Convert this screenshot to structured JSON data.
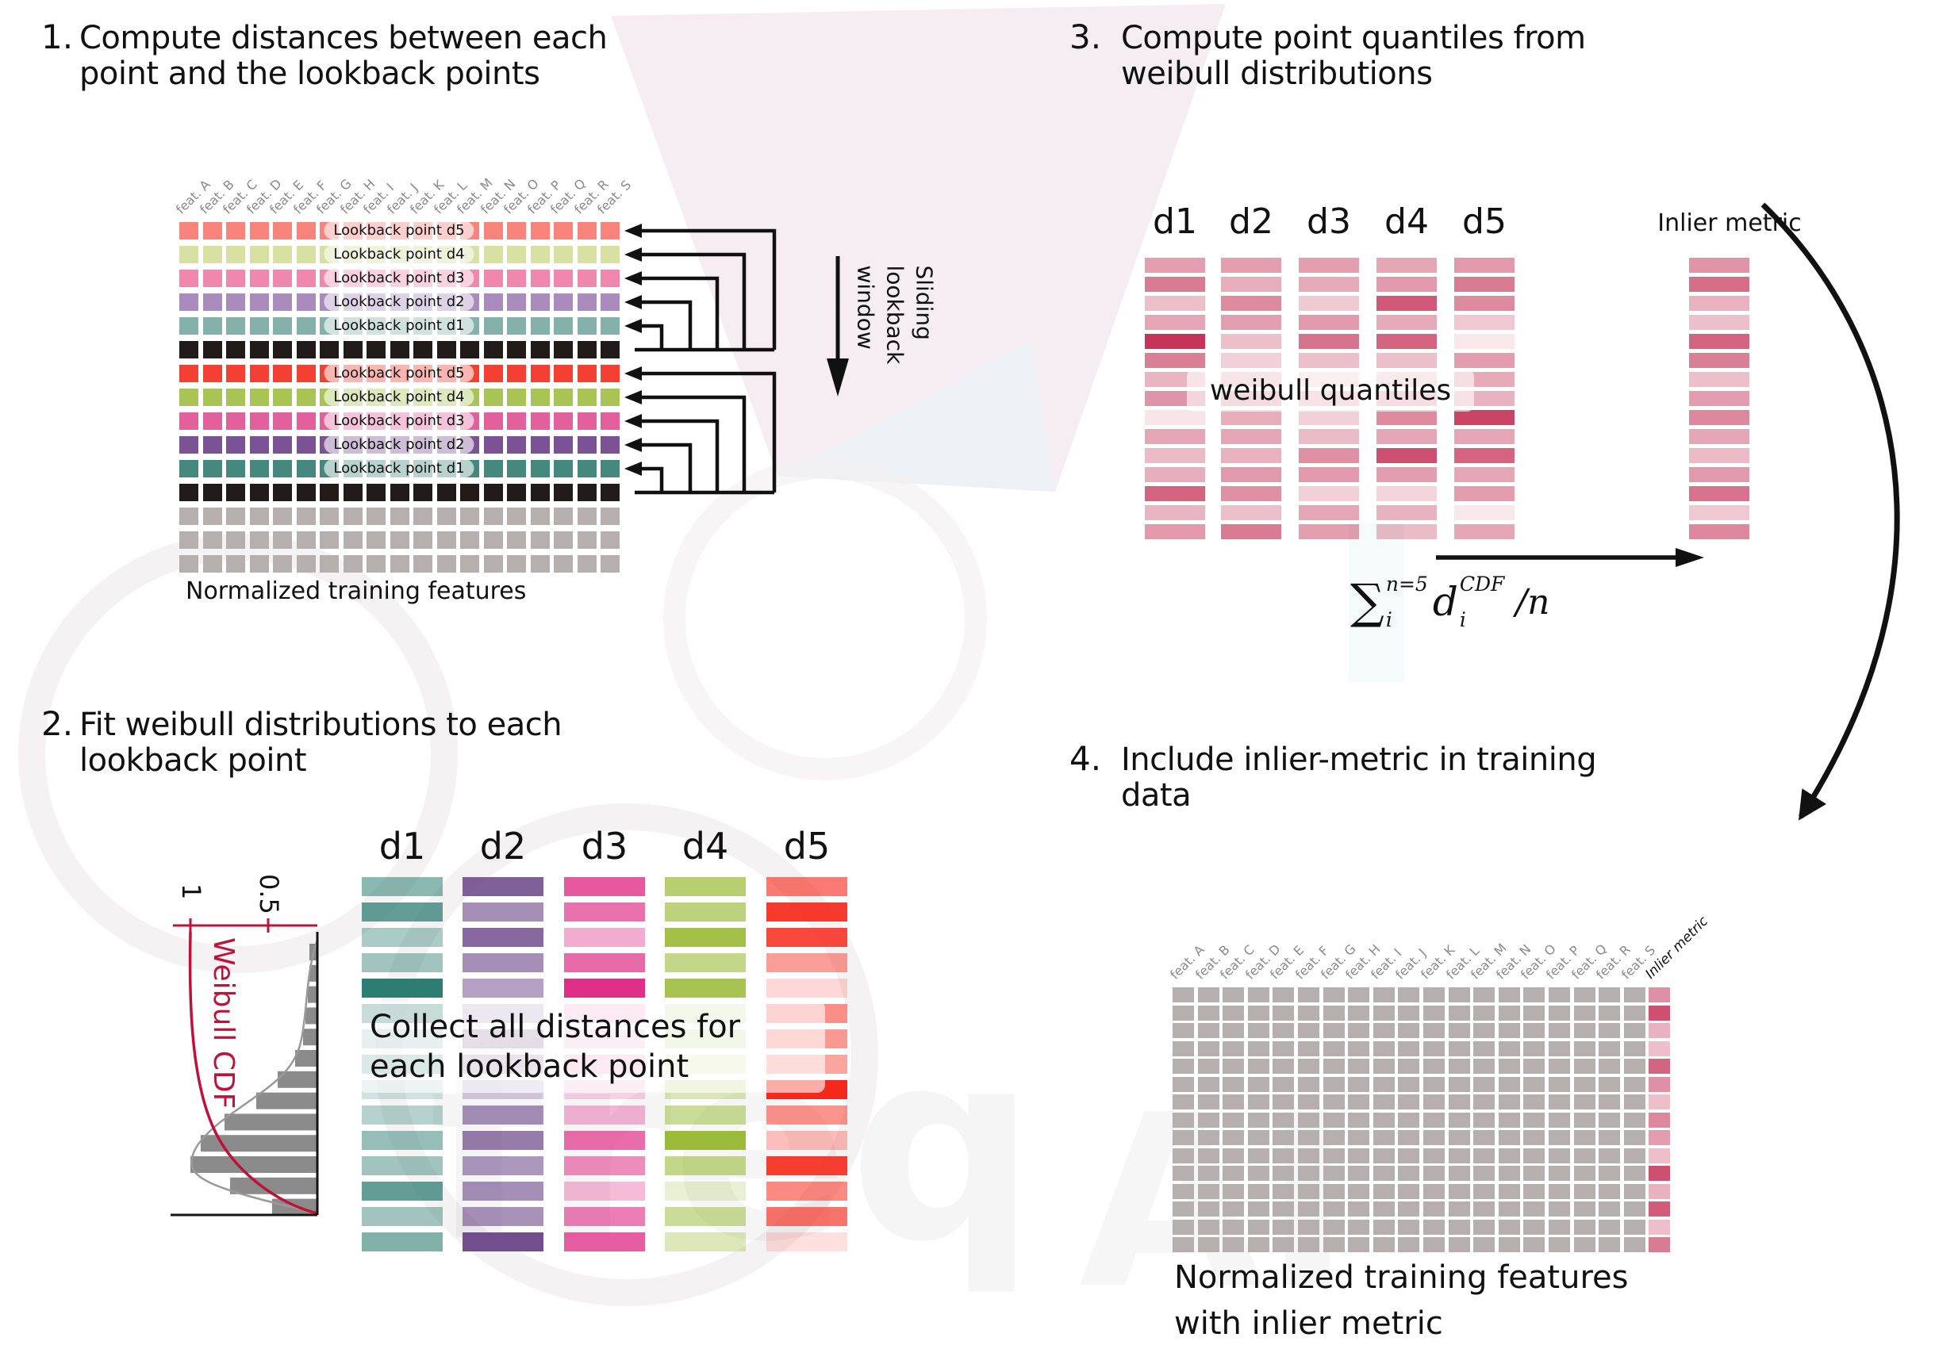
{
  "steps": {
    "s1": {
      "number": "1.",
      "title": "Compute distances between each\npoint and the lookback points",
      "caption": "Normalized training features",
      "sliding_label": "Sliding\nlookback\nwindow"
    },
    "s2": {
      "number": "2.",
      "title": "Fit weibull distributions to each\nlookback point",
      "overlay": "Collect all distances for\neach lookback point"
    },
    "s3": {
      "number": "3.",
      "title": "Compute point quantiles from\nweibull distributions",
      "overlay": "weibull quantiles",
      "inlier_header": "Inlier metric",
      "formula": {
        "sum": "∑",
        "sum_sup": "n=5",
        "sum_sub": "i",
        "var": "d",
        "var_sup": "CDF",
        "var_sub": "i",
        "tail": "/n"
      }
    },
    "s4": {
      "number": "4.",
      "title": "Include inlier-metric in training\ndata",
      "caption": "Normalized training features\nwith inlier metric",
      "inlier_label": "Inlier metric"
    }
  },
  "features": [
    "feat. A",
    "feat. B",
    "feat. C",
    "feat. D",
    "feat. E",
    "feat. F",
    "feat. G",
    "feat. H",
    "feat. I",
    "feat. J",
    "feat. K",
    "feat. L",
    "feat. M",
    "feat. N",
    "feat. O",
    "feat. P",
    "feat. Q",
    "feat. R",
    "feat. S"
  ],
  "lookback_labels": [
    "Lookback point d5",
    "Lookback point d4",
    "Lookback point d3",
    "Lookback point d2",
    "Lookback point d1"
  ],
  "distance_headers": [
    "d1",
    "d2",
    "d3",
    "d4",
    "d5"
  ],
  "colors": {
    "text": "#111111",
    "label_gray": "#8a8a8a",
    "cell_gray": "#b5b0ad",
    "black_row": "#211c19",
    "lookback_light": [
      "#f9847b",
      "#d8e0a2",
      "#ef87ae",
      "#a98cbd",
      "#84b1a9"
    ],
    "lookback_vivid": [
      "#f43f33",
      "#a9c355",
      "#e2609c",
      "#7b5293",
      "#45887e"
    ],
    "crimson": "#c22a50",
    "axis_red": "#be1238",
    "hist_gray": "#8b8b8b"
  },
  "grid1": {
    "row_colors": [
      "#f9847b",
      "#d8e0a2",
      "#ef87ae",
      "#a98cbd",
      "#84b1a9",
      "#211c19",
      "#f43f33",
      "#a9c355",
      "#e2609c",
      "#7b5293",
      "#45887e",
      "#211c19",
      "#b5b0ad",
      "#b5b0ad",
      "#b5b0ad"
    ],
    "label_rows": [
      0,
      1,
      2,
      3,
      4,
      6,
      7,
      8,
      9,
      10
    ]
  },
  "step2": {
    "bases": [
      "#2e7d72",
      "#6a4487",
      "#df2f87",
      "#9cbb3a",
      "#f5291b"
    ],
    "alphas": [
      [
        0.55,
        0.75,
        0.4,
        0.45,
        1.0,
        0.7,
        0.3,
        0.45,
        0.22,
        0.35,
        0.5,
        0.45,
        0.75,
        0.45,
        0.6
      ],
      [
        0.85,
        0.6,
        0.8,
        0.6,
        0.5,
        0.32,
        0.45,
        0.35,
        0.28,
        0.6,
        0.7,
        0.55,
        0.6,
        0.58,
        0.95
      ],
      [
        0.8,
        0.68,
        0.4,
        0.72,
        1.0,
        0.25,
        0.22,
        0.28,
        0.22,
        0.35,
        0.7,
        0.55,
        0.32,
        0.62,
        0.78
      ],
      [
        0.72,
        0.66,
        0.92,
        0.6,
        0.88,
        0.28,
        0.32,
        0.25,
        0.38,
        0.52,
        1.0,
        0.6,
        0.22,
        0.52,
        0.35
      ],
      [
        0.62,
        0.92,
        0.85,
        0.45,
        0.18,
        0.52,
        0.48,
        0.42,
        1.0,
        0.5,
        0.3,
        0.9,
        0.55,
        0.65,
        0.14
      ]
    ]
  },
  "step3": {
    "base": "#c22a50",
    "alphas": [
      [
        0.45,
        0.62,
        0.3,
        0.42,
        0.95,
        0.6,
        0.35,
        0.5,
        0.12,
        0.42,
        0.32,
        0.38,
        0.72,
        0.35,
        0.48
      ],
      [
        0.45,
        0.38,
        0.55,
        0.45,
        0.3,
        0.22,
        0.32,
        0.45,
        0.38,
        0.42,
        0.36,
        0.48,
        0.52,
        0.3,
        0.62
      ],
      [
        0.45,
        0.4,
        0.25,
        0.48,
        0.65,
        0.3,
        0.2,
        0.36,
        0.22,
        0.32,
        0.52,
        0.48,
        0.22,
        0.42,
        0.45
      ],
      [
        0.42,
        0.48,
        0.78,
        0.4,
        0.72,
        0.3,
        0.26,
        0.42,
        0.55,
        0.42,
        0.82,
        0.46,
        0.2,
        0.36,
        0.32
      ],
      [
        0.48,
        0.62,
        0.55,
        0.26,
        0.1,
        0.46,
        0.4,
        0.36,
        0.88,
        0.42,
        0.72,
        0.42,
        0.46,
        0.1,
        0.42
      ]
    ],
    "inlier_alphas": [
      0.5,
      0.68,
      0.36,
      0.3,
      0.72,
      0.6,
      0.3,
      0.46,
      0.56,
      0.42,
      0.32,
      0.48,
      0.66,
      0.26,
      0.56
    ]
  },
  "step4": {
    "inlier_alphas": [
      0.52,
      0.82,
      0.36,
      0.3,
      0.72,
      0.52,
      0.3,
      0.56,
      0.46,
      0.3,
      0.82,
      0.36,
      0.76,
      0.3,
      0.62
    ]
  },
  "weibull_plot": {
    "ylabel": "Weibull CDF",
    "ticks": [
      "1",
      "0.5"
    ],
    "bar_lengths": [
      10,
      10,
      12,
      15,
      18,
      28,
      50,
      77,
      117,
      147,
      160,
      110,
      57
    ]
  }
}
